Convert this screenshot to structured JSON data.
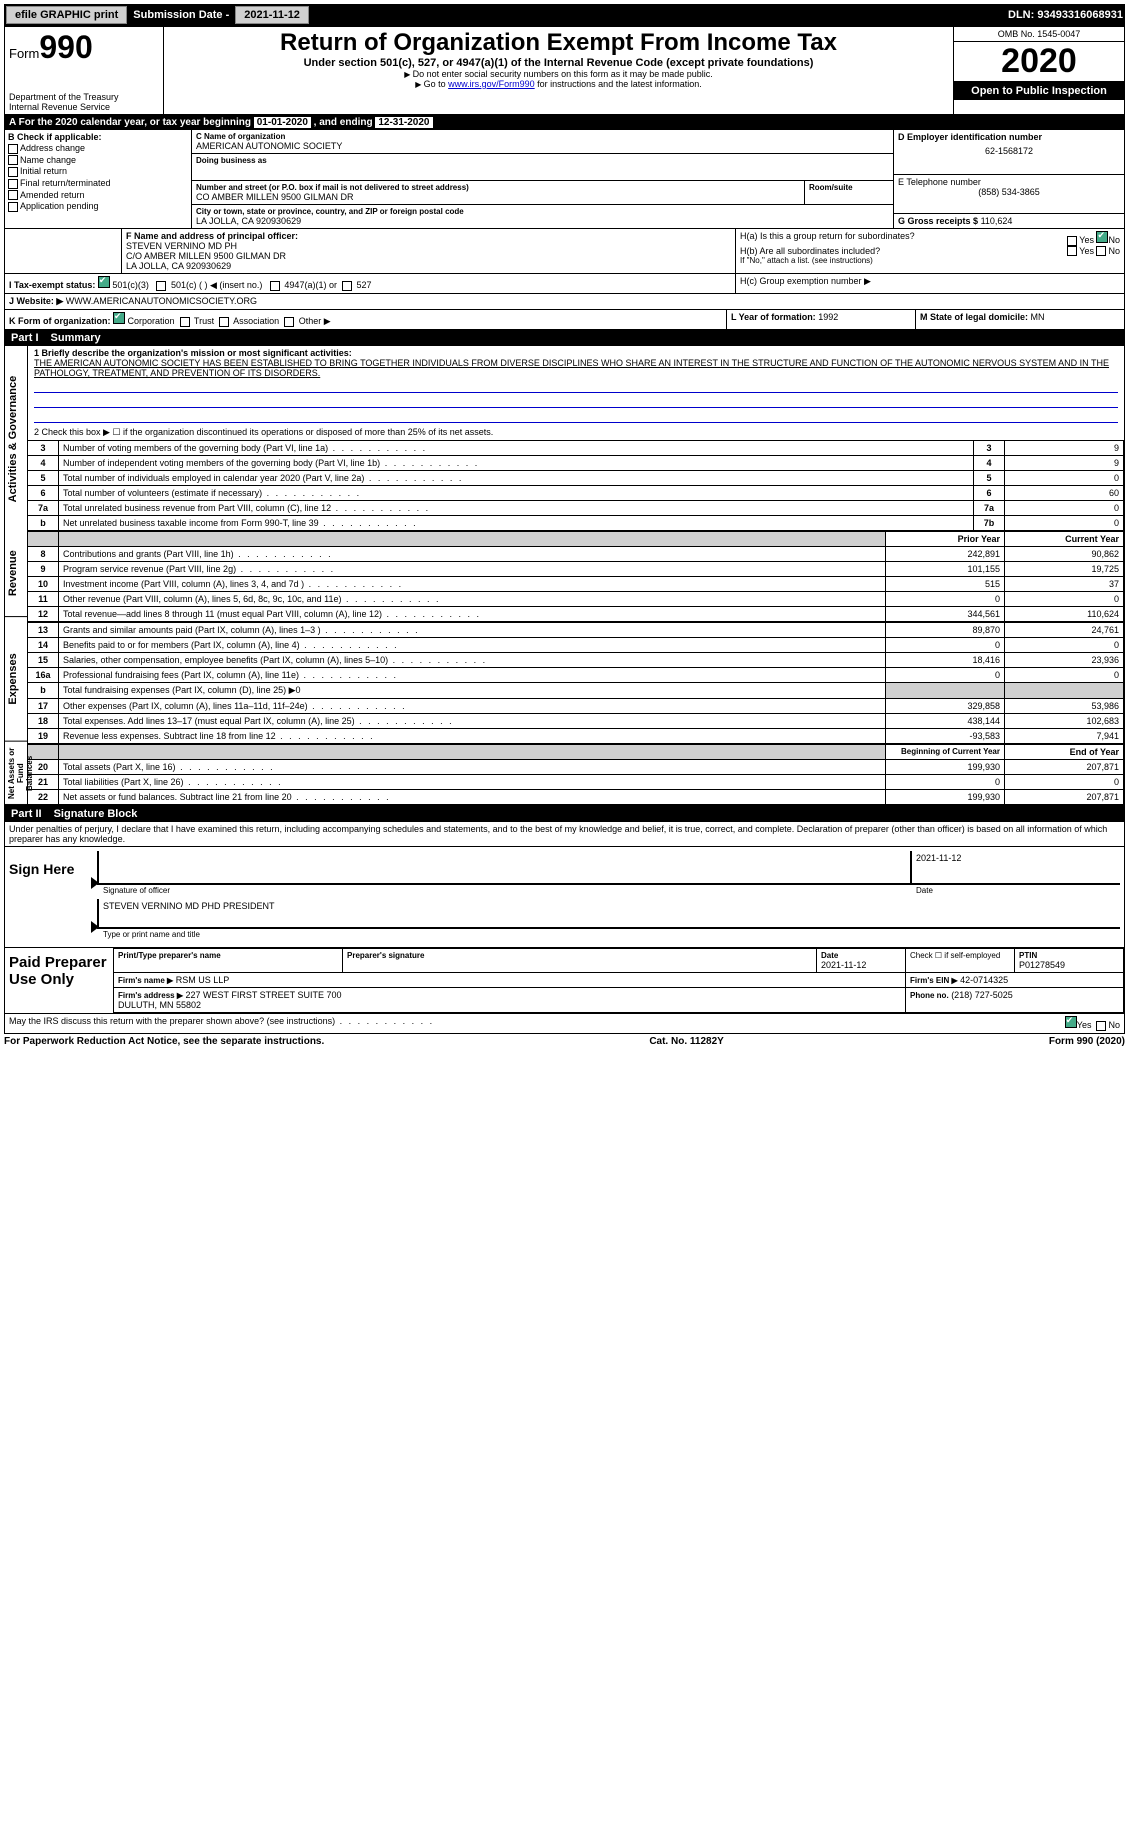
{
  "topbar": {
    "efile": "efile GRAPHIC print",
    "subdate_lbl": "Submission Date -",
    "subdate": "2021-11-12",
    "dln_lbl": "DLN:",
    "dln": "93493316068931"
  },
  "header": {
    "form_prefix": "Form",
    "form_num": "990",
    "dept": "Department of the Treasury\nInternal Revenue Service",
    "title": "Return of Organization Exempt From Income Tax",
    "sub1": "Under section 501(c), 527, or 4947(a)(1) of the Internal Revenue Code (except private foundations)",
    "sub2": "Do not enter social security numbers on this form as it may be made public.",
    "sub3_pre": "Go to ",
    "sub3_link": "www.irs.gov/Form990",
    "sub3_post": " for instructions and the latest information.",
    "omb": "OMB No. 1545-0047",
    "year": "2020",
    "inspect": "Open to Public Inspection"
  },
  "period": {
    "label_a": "A For the 2020 calendar year, or tax year beginning ",
    "begin": "01-01-2020",
    "mid": " , and ending ",
    "end": "12-31-2020"
  },
  "sectionB": {
    "hdr": "B Check if applicable:",
    "items": [
      "Address change",
      "Name change",
      "Initial return",
      "Final return/terminated",
      "Amended return",
      "Application pending"
    ]
  },
  "sectionC": {
    "lbl": "C Name of organization",
    "name": "AMERICAN AUTONOMIC SOCIETY",
    "dba_lbl": "Doing business as",
    "dba": "",
    "addr_lbl": "Number and street (or P.O. box if mail is not delivered to street address)",
    "room_lbl": "Room/suite",
    "addr": "CO AMBER MILLEN 9500 GILMAN DR",
    "city_lbl": "City or town, state or province, country, and ZIP or foreign postal code",
    "city": "LA JOLLA, CA  920930629"
  },
  "sectionD": {
    "lbl": "D Employer identification number",
    "val": "62-1568172"
  },
  "sectionE": {
    "lbl": "E Telephone number",
    "val": "(858) 534-3865"
  },
  "sectionG": {
    "lbl": "G Gross receipts $",
    "val": "110,624"
  },
  "sectionF": {
    "lbl": "F Name and address of principal officer:",
    "name": "STEVEN VERNINO MD PH",
    "addr": "C/O AMBER MILLEN 9500 GILMAN DR\nLA JOLLA, CA  920930629"
  },
  "sectionH": {
    "a": "H(a)  Is this a group return for subordinates?",
    "b": "H(b)  Are all subordinates included?",
    "bnote": "If \"No,\" attach a list. (see instructions)",
    "c": "H(c)  Group exemption number ▶",
    "yes": "Yes",
    "no": "No"
  },
  "sectionI": {
    "lbl": "I  Tax-exempt status:",
    "opts": [
      "501(c)(3)",
      "501(c) (  ) ◀ (insert no.)",
      "4947(a)(1) or",
      "527"
    ]
  },
  "sectionJ": {
    "lbl": "J Website: ▶",
    "val": "WWW.AMERICANAUTONOMICSOCIETY.ORG"
  },
  "sectionK": {
    "lbl": "K Form of organization:",
    "opts": [
      "Corporation",
      "Trust",
      "Association",
      "Other ▶"
    ]
  },
  "sectionL": {
    "lbl": "L Year of formation:",
    "val": "1992"
  },
  "sectionM": {
    "lbl": "M State of legal domicile:",
    "val": "MN"
  },
  "part1": {
    "hdr_num": "Part I",
    "hdr_txt": "Summary",
    "side1": "Activities & Governance",
    "side2": "Revenue",
    "side3": "Expenses",
    "side4": "Net Assets or Fund Balances",
    "line1_lbl": "1  Briefly describe the organization's mission or most significant activities:",
    "line1_txt": "THE AMERICAN AUTONOMIC SOCIETY HAS BEEN ESTABLISHED TO BRING TOGETHER INDIVIDUALS FROM DIVERSE DISCIPLINES WHO SHARE AN INTEREST IN THE STRUCTURE AND FUNCTION OF THE AUTONOMIC NERVOUS SYSTEM AND IN THE PATHOLOGY, TREATMENT, AND PREVENTION OF ITS DISORDERS.",
    "line2": "2  Check this box ▶ ☐ if the organization discontinued its operations or disposed of more than 25% of its net assets.",
    "gov_rows": [
      {
        "n": "3",
        "t": "Number of voting members of the governing body (Part VI, line 1a)",
        "box": "3",
        "v": "9"
      },
      {
        "n": "4",
        "t": "Number of independent voting members of the governing body (Part VI, line 1b)",
        "box": "4",
        "v": "9"
      },
      {
        "n": "5",
        "t": "Total number of individuals employed in calendar year 2020 (Part V, line 2a)",
        "box": "5",
        "v": "0"
      },
      {
        "n": "6",
        "t": "Total number of volunteers (estimate if necessary)",
        "box": "6",
        "v": "60"
      },
      {
        "n": "7a",
        "t": "Total unrelated business revenue from Part VIII, column (C), line 12",
        "box": "7a",
        "v": "0"
      },
      {
        "n": "b",
        "t": "Net unrelated business taxable income from Form 990-T, line 39",
        "box": "7b",
        "v": "0"
      }
    ],
    "col_prior": "Prior Year",
    "col_curr": "Current Year",
    "rev_rows": [
      {
        "n": "8",
        "t": "Contributions and grants (Part VIII, line 1h)",
        "p": "242,891",
        "c": "90,862"
      },
      {
        "n": "9",
        "t": "Program service revenue (Part VIII, line 2g)",
        "p": "101,155",
        "c": "19,725"
      },
      {
        "n": "10",
        "t": "Investment income (Part VIII, column (A), lines 3, 4, and 7d )",
        "p": "515",
        "c": "37"
      },
      {
        "n": "11",
        "t": "Other revenue (Part VIII, column (A), lines 5, 6d, 8c, 9c, 10c, and 11e)",
        "p": "0",
        "c": "0"
      },
      {
        "n": "12",
        "t": "Total revenue—add lines 8 through 11 (must equal Part VIII, column (A), line 12)",
        "p": "344,561",
        "c": "110,624"
      }
    ],
    "exp_rows": [
      {
        "n": "13",
        "t": "Grants and similar amounts paid (Part IX, column (A), lines 1–3 )",
        "p": "89,870",
        "c": "24,761"
      },
      {
        "n": "14",
        "t": "Benefits paid to or for members (Part IX, column (A), line 4)",
        "p": "0",
        "c": "0"
      },
      {
        "n": "15",
        "t": "Salaries, other compensation, employee benefits (Part IX, column (A), lines 5–10)",
        "p": "18,416",
        "c": "23,936"
      },
      {
        "n": "16a",
        "t": "Professional fundraising fees (Part IX, column (A), line 11e)",
        "p": "0",
        "c": "0"
      },
      {
        "n": "b",
        "t": "Total fundraising expenses (Part IX, column (D), line 25) ▶0",
        "p": "",
        "c": "",
        "noval": true
      },
      {
        "n": "17",
        "t": "Other expenses (Part IX, column (A), lines 11a–11d, 11f–24e)",
        "p": "329,858",
        "c": "53,986"
      },
      {
        "n": "18",
        "t": "Total expenses. Add lines 13–17 (must equal Part IX, column (A), line 25)",
        "p": "438,144",
        "c": "102,683"
      },
      {
        "n": "19",
        "t": "Revenue less expenses. Subtract line 18 from line 12",
        "p": "-93,583",
        "c": "7,941"
      }
    ],
    "col_beg": "Beginning of Current Year",
    "col_end": "End of Year",
    "net_rows": [
      {
        "n": "20",
        "t": "Total assets (Part X, line 16)",
        "p": "199,930",
        "c": "207,871"
      },
      {
        "n": "21",
        "t": "Total liabilities (Part X, line 26)",
        "p": "0",
        "c": "0"
      },
      {
        "n": "22",
        "t": "Net assets or fund balances. Subtract line 21 from line 20",
        "p": "199,930",
        "c": "207,871"
      }
    ]
  },
  "part2": {
    "hdr_num": "Part II",
    "hdr_txt": "Signature Block",
    "decl": "Under penalties of perjury, I declare that I have examined this return, including accompanying schedules and statements, and to the best of my knowledge and belief, it is true, correct, and complete. Declaration of preparer (other than officer) is based on all information of which preparer has any knowledge.",
    "sign_here": "Sign Here",
    "sig_officer": "Signature of officer",
    "sig_date_lbl": "Date",
    "sig_date": "2021-11-12",
    "officer_name": "STEVEN VERNINO MD PHD  PRESIDENT",
    "officer_type": "Type or print name and title",
    "paid": "Paid Preparer Use Only",
    "p_name_lbl": "Print/Type preparer's name",
    "p_sig_lbl": "Preparer's signature",
    "p_date_lbl": "Date",
    "p_date": "2021-11-12",
    "p_check": "Check ☐ if self-employed",
    "ptin_lbl": "PTIN",
    "ptin": "P01278549",
    "firm_name_lbl": "Firm's name   ▶",
    "firm_name": "RSM US LLP",
    "firm_ein_lbl": "Firm's EIN ▶",
    "firm_ein": "42-0714325",
    "firm_addr_lbl": "Firm's address ▶",
    "firm_addr": "227 WEST FIRST STREET SUITE 700\nDULUTH, MN  55802",
    "phone_lbl": "Phone no.",
    "phone": "(218) 727-5025",
    "discuss": "May the IRS discuss this return with the preparer shown above? (see instructions)"
  },
  "footer": {
    "left": "For Paperwork Reduction Act Notice, see the separate instructions.",
    "mid": "Cat. No. 11282Y",
    "right": "Form 990 (2020)"
  }
}
